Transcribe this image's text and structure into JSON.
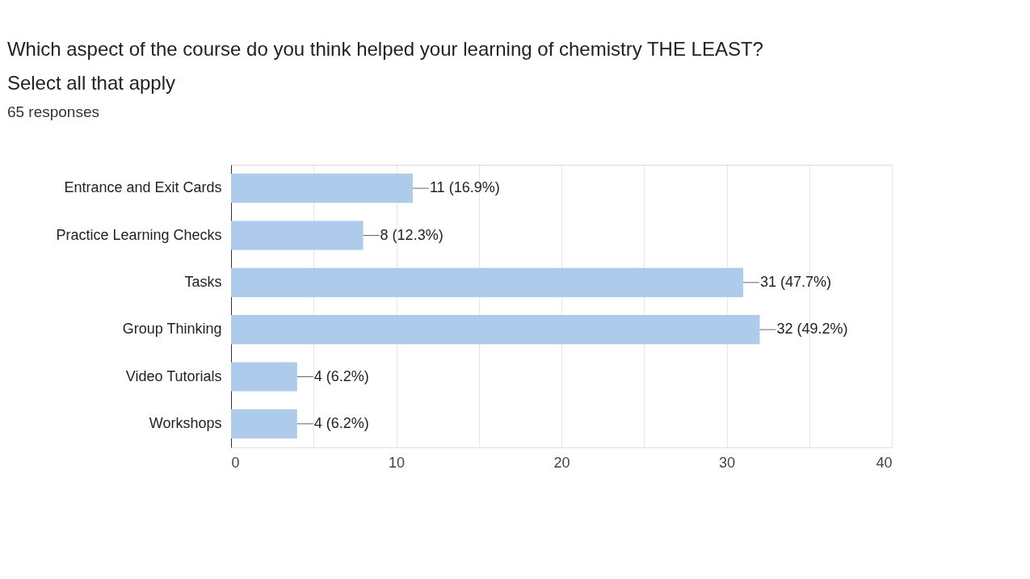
{
  "chart_data": {
    "type": "bar",
    "orientation": "horizontal",
    "title": "Which aspect of the course do you think helped your learning of chemistry THE LEAST?\nSelect all that apply",
    "subtitle": "65 responses",
    "categories": [
      "Entrance and Exit Cards",
      "Practice Learning Checks",
      "Tasks",
      "Group Thinking",
      "Video Tutorials",
      "Workshops"
    ],
    "values": [
      11,
      8,
      31,
      32,
      4,
      4
    ],
    "value_labels": [
      "11 (16.9%)",
      "8 (12.3%)",
      "31 (47.7%)",
      "32 (49.2%)",
      "4 (6.2%)",
      "4 (6.2%)"
    ],
    "color": "#aecbeb",
    "xlim": [
      0,
      40
    ],
    "xticks": [
      0,
      {
        "value": 5,
        "label": null
      },
      10,
      {
        "value": 15,
        "label": null
      },
      20,
      {
        "value": 25,
        "label": null
      },
      30,
      {
        "value": 35,
        "label": null
      },
      40
    ],
    "grid": "x"
  }
}
